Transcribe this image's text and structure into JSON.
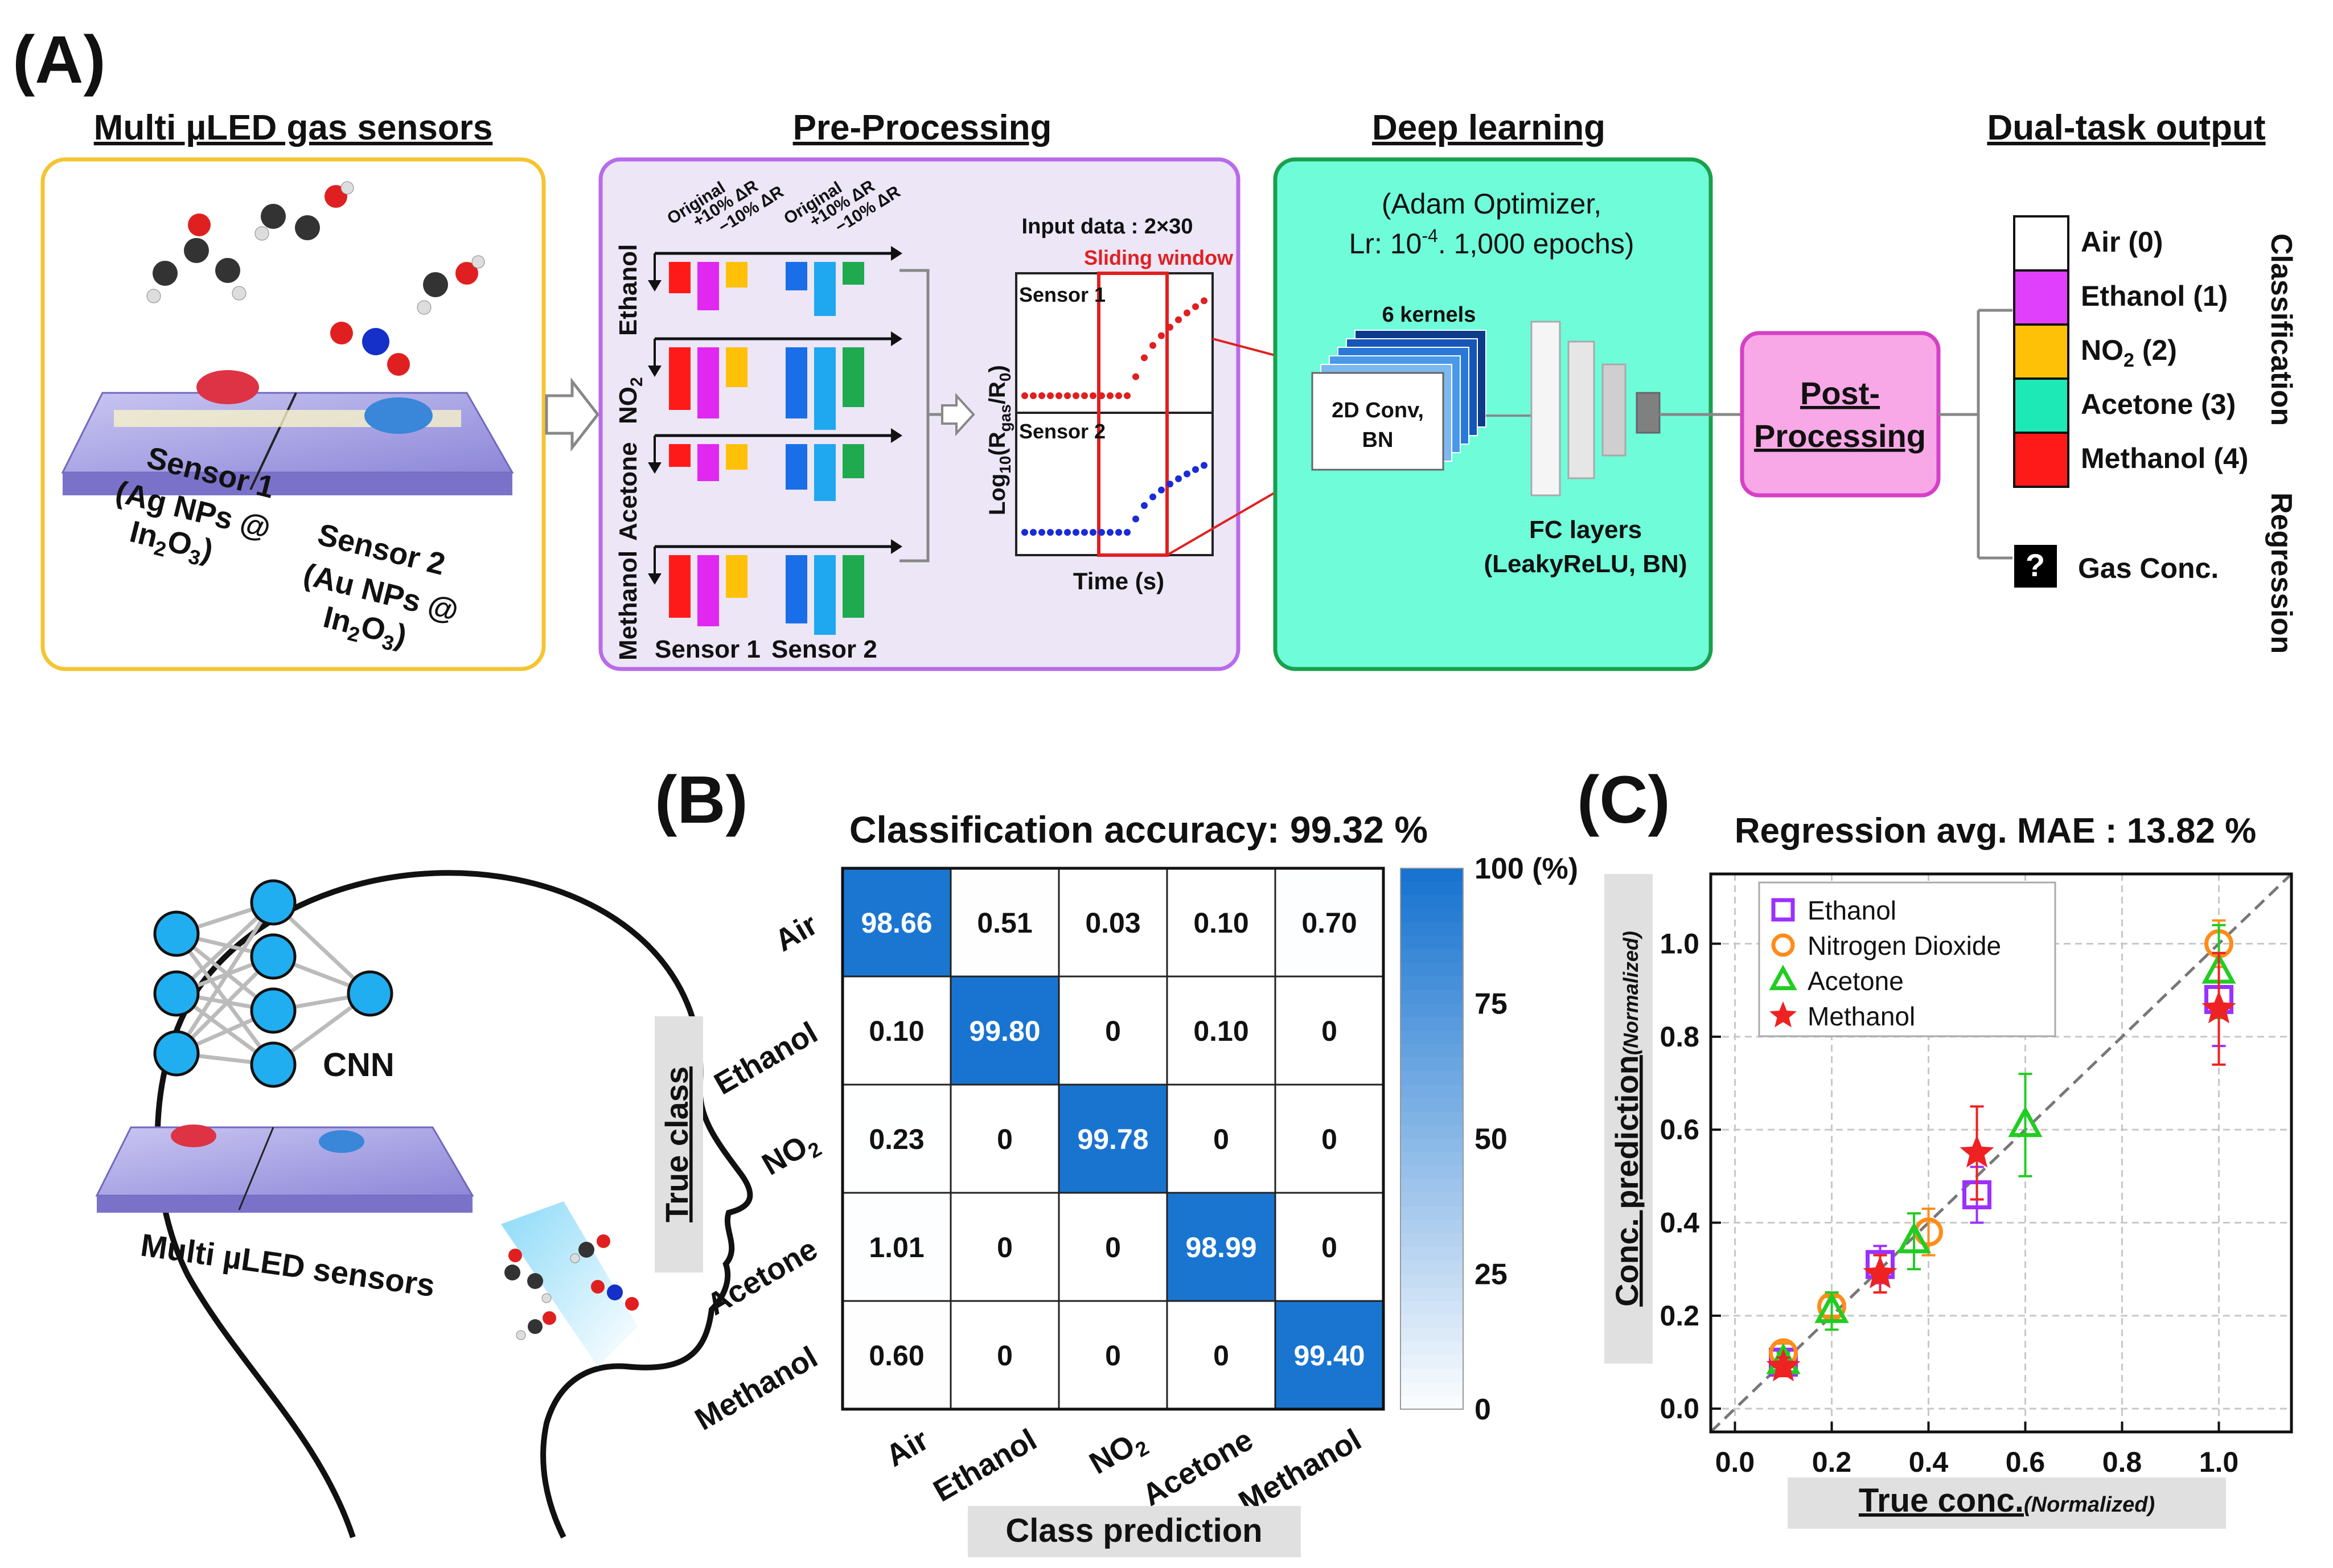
{
  "panel_labels": {
    "a": "(A)",
    "b": "(B)",
    "c": "(C)"
  },
  "stages": {
    "sensors": "Multi µLED gas sensors",
    "preprocessing": "Pre-Processing",
    "deep_learning": "Deep learning",
    "output": "Dual-task output"
  },
  "sensors_panel": {
    "sensor1_line1": "Sensor 1",
    "sensor1_line2": "(Ag NPs @",
    "sensor1_line3": "In",
    "sensor1_sub": "2",
    "sensor1_line3b": "O",
    "sensor1_sub2": "3",
    "sensor1_close": ")",
    "sensor2_line1": "Sensor  2",
    "sensor2_line2": "(Au NPs @",
    "sensor2_line3": "In",
    "sensor2_sub": "2",
    "sensor2_line3b": "O",
    "sensor2_sub2": "3",
    "sensor2_close": ")"
  },
  "preprocessing": {
    "col_labels": [
      "Original",
      "+10% ΔR",
      "−10% ΔR"
    ],
    "gases": [
      "Ethanol",
      "NO",
      "Acetone",
      "Methanol"
    ],
    "no2_sub": "2",
    "sensor1": "Sensor 1",
    "sensor2": "Sensor 2",
    "input_data": "Input data : 2×30",
    "sliding_window": "Sliding window",
    "plot_sensor1": "Sensor 1",
    "plot_sensor2": "Sensor 2",
    "ylabel_a": "Log",
    "ylabel_b": "10",
    "ylabel_c": "(R",
    "ylabel_d": "gas",
    "ylabel_e": "/R",
    "ylabel_f": "0",
    "ylabel_g": ")",
    "xlabel": "Time (s)"
  },
  "deep_learning": {
    "optimizer_line1": "(Adam Optimizer,",
    "optimizer_line2a": "Lr: 10",
    "optimizer_exp": "-4",
    "optimizer_line2b": ". 1,000 epochs)",
    "kernels": "6 kernels",
    "conv_line1": "2D Conv,",
    "conv_line2": "BN",
    "fc_line1": "FC layers",
    "fc_line2": "(LeakyReLU, BN)"
  },
  "post_processing": {
    "line1": "Post-",
    "line2": "Processing"
  },
  "output": {
    "classes": [
      {
        "label": "Air (0)",
        "color": "#ffffff"
      },
      {
        "label": "Ethanol (1)",
        "color": "#e040fb"
      },
      {
        "label": "NO",
        "sub": "2",
        "suffix": " (2)",
        "color": "#ffc107"
      },
      {
        "label": "Acetone (3)",
        "color": "#1de9b6"
      },
      {
        "label": "Methanol (4)",
        "color": "#ff1a1a"
      }
    ],
    "question": "?",
    "gas_conc": "Gas Conc.",
    "classification": "Classification",
    "regression": "Regression"
  },
  "head": {
    "cnn": "CNN",
    "sensors": "Multi µLED sensors"
  },
  "colors": {
    "sensors_border": "#f5c431",
    "pre_bg": "#ece6f7",
    "pre_border": "#b86bea",
    "dl_bg": "#6ffcd9",
    "dl_border": "#1aa04d",
    "post_bg": "#f8a8e6",
    "post_border": "#d640c6",
    "matrix_blue": "#1874d0",
    "node_blue": "#20aef0"
  },
  "chart_data": [
    {
      "type": "heatmap",
      "title": "Classification accuracy: 99.32 %",
      "xlabel": "Class prediction",
      "ylabel": "True class",
      "row_labels": [
        "Air",
        "Ethanol",
        "NO",
        "Acetone",
        "Methanol"
      ],
      "col_labels": [
        "Air",
        "Ethanol",
        "NO",
        "Acetone",
        "Methanol"
      ],
      "no2_sub": "2",
      "values": [
        [
          98.66,
          0.51,
          0.03,
          0.1,
          0.7
        ],
        [
          0.1,
          99.8,
          0,
          0.1,
          0
        ],
        [
          0.23,
          0,
          99.78,
          0,
          0
        ],
        [
          1.01,
          0,
          0,
          98.99,
          0
        ],
        [
          0.6,
          0,
          0,
          0,
          99.4
        ]
      ],
      "value_labels": [
        [
          "98.66",
          "0.51",
          "0.03",
          "0.10",
          "0.70"
        ],
        [
          "0.10",
          "99.80",
          "0",
          "0.10",
          "0"
        ],
        [
          "0.23",
          "0",
          "99.78",
          "0",
          "0"
        ],
        [
          "1.01",
          "0",
          "0",
          "98.99",
          "0"
        ],
        [
          "0.60",
          "0",
          "0",
          "0",
          "99.40"
        ]
      ],
      "colorbar_ticks": [
        "100 (%)",
        "75",
        "50",
        "25",
        "0"
      ],
      "colorbar_range": [
        0,
        100
      ]
    },
    {
      "type": "scatter",
      "title": "Regression avg. MAE : 13.82 %",
      "xlabel": "True conc.",
      "xlabel_suffix": "(Normalized)",
      "ylabel": "Conc. prediction",
      "ylabel_suffix": "(Normalized)",
      "xlim": [
        -0.05,
        1.15
      ],
      "ylim": [
        -0.05,
        1.15
      ],
      "x_ticks": [
        "0.0",
        "0.2",
        "0.4",
        "0.6",
        "0.8",
        "1.0"
      ],
      "y_ticks": [
        "0.0",
        "0.2",
        "0.4",
        "0.6",
        "0.8",
        "1.0"
      ],
      "grid": true,
      "legend": "top-left",
      "series": [
        {
          "name": "Ethanol",
          "marker": "square",
          "color": "#9b30ff",
          "x": [
            0.1,
            0.3,
            0.5,
            1.0
          ],
          "y": [
            0.1,
            0.31,
            0.46,
            0.88
          ],
          "err": [
            0.02,
            0.04,
            0.06,
            0.1
          ]
        },
        {
          "name": "Nitrogen Dioxide",
          "marker": "circle",
          "color": "#ff8c1a",
          "x": [
            0.1,
            0.2,
            0.4,
            1.0
          ],
          "y": [
            0.12,
            0.22,
            0.38,
            1.0
          ],
          "err": [
            0.02,
            0.02,
            0.05,
            0.05
          ]
        },
        {
          "name": "Acetone",
          "marker": "triangle",
          "color": "#22cc22",
          "x": [
            0.1,
            0.2,
            0.37,
            0.6,
            1.0
          ],
          "y": [
            0.1,
            0.21,
            0.36,
            0.61,
            0.94
          ],
          "err": [
            0.02,
            0.04,
            0.06,
            0.11,
            0.1
          ]
        },
        {
          "name": "Methanol",
          "marker": "star",
          "color": "#ee2222",
          "x": [
            0.1,
            0.3,
            0.5,
            1.0
          ],
          "y": [
            0.09,
            0.29,
            0.55,
            0.86
          ],
          "err": [
            0.02,
            0.04,
            0.1,
            0.12
          ]
        }
      ]
    }
  ]
}
